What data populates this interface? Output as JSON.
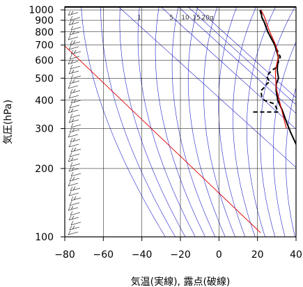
{
  "chart_data": {
    "type": "line",
    "subtype": "skew-t-log-p",
    "title": "",
    "xlabel": "気温(実線), 露点(破線)",
    "ylabel": "気圧(hPa)",
    "xlim": [
      -80,
      40
    ],
    "ylim": [
      1030,
      100
    ],
    "yscale": "log",
    "skew_deg_per_decade": 140,
    "x_ticks": [
      "−80",
      "−60",
      "−40",
      "−20",
      "0",
      "20",
      "40"
    ],
    "x_tick_values": [
      -80,
      -60,
      -40,
      -20,
      0,
      20,
      40
    ],
    "y_ticks": [
      "100",
      "200",
      "300",
      "400",
      "500",
      "600",
      "700",
      "800",
      "900",
      "1000"
    ],
    "y_tick_values": [
      100,
      200,
      300,
      400,
      500,
      600,
      700,
      800,
      900,
      1000
    ],
    "mixing_ratio_labels": [
      "1",
      "5",
      "10",
      "15",
      "20g"
    ],
    "grid": true,
    "colors": {
      "frame": "#000000",
      "grid": "#000000",
      "adiabat": "#2222cc",
      "reference_line": "#e00000",
      "temperature": "#000000",
      "dewpoint": "#000000",
      "parcel": "#e00000",
      "barbs": "#444444"
    },
    "series": [
      {
        "points": [
          [
            -50,
            150
          ],
          [
            -47,
            170
          ],
          [
            -46,
            220
          ],
          [
            -45.5,
            250
          ],
          [
            -40,
            290
          ],
          [
            -36,
            320
          ],
          [
            -31,
            360
          ],
          [
            -27,
            400
          ],
          [
            -22,
            440
          ],
          [
            -18,
            470
          ],
          [
            -13,
            500
          ],
          [
            -9,
            540
          ],
          [
            -4.5,
            580
          ],
          [
            0,
            620
          ],
          [
            5.5,
            700
          ],
          [
            10,
            800
          ],
          [
            14,
            880
          ],
          [
            16,
            930
          ],
          [
            20,
            1000
          ]
        ]
      },
      {
        "points": [
          [
            -47,
            355
          ],
          [
            -34,
            355
          ],
          [
            -31,
            385
          ],
          [
            -34,
            400
          ],
          [
            -33,
            415
          ],
          [
            -30,
            440
          ],
          [
            -25,
            460
          ],
          [
            -22,
            475
          ],
          [
            -20,
            480
          ],
          [
            -18,
            510
          ],
          [
            -12,
            540
          ],
          [
            -7,
            560
          ],
          [
            -3,
            590
          ],
          [
            1,
            620
          ],
          [
            5.5,
            700
          ],
          [
            10,
            800
          ],
          [
            14,
            880
          ],
          [
            16,
            930
          ],
          [
            19.5,
            1000
          ]
        ]
      },
      {
        "points": [
          [
            -40,
            300
          ],
          [
            -30,
            370
          ],
          [
            -20,
            455
          ],
          [
            -10,
            540
          ],
          [
            0,
            620
          ],
          [
            6,
            700
          ],
          [
            11,
            800
          ],
          [
            15,
            880
          ],
          [
            17.5,
            930
          ],
          [
            20,
            1000
          ]
        ]
      }
    ]
  }
}
